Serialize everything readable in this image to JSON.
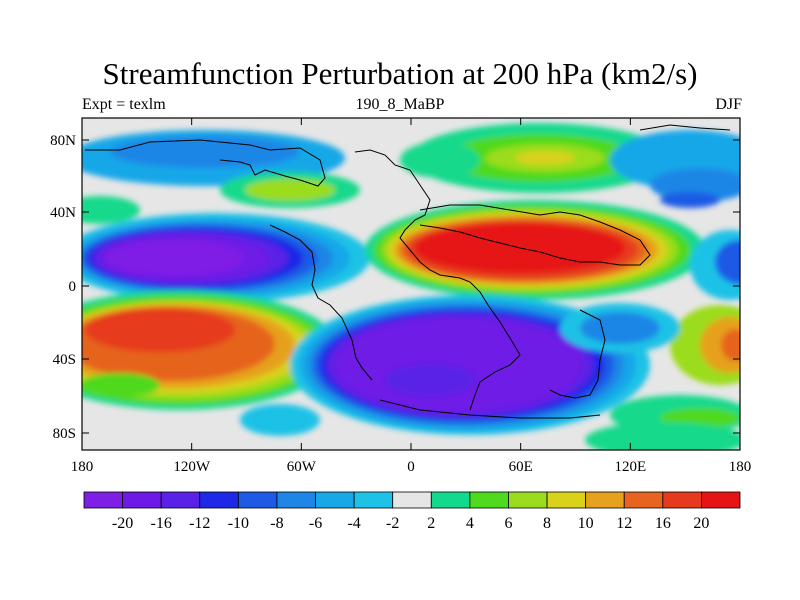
{
  "title": "Streamfunction Perturbation at 200 hPa (km2/s)",
  "left_label": "Expt = texlm",
  "center_label": "190_8_MaBP",
  "right_label": "DJF",
  "lat_ticks": [
    "80N",
    "40N",
    "0",
    "40S",
    "80S"
  ],
  "lon_ticks": [
    "180",
    "120W",
    "60W",
    "0",
    "60E",
    "120E",
    "180"
  ],
  "colorbar": {
    "labels": [
      "-20",
      "-16",
      "-12",
      "-10",
      "-8",
      "-6",
      "-4",
      "-2",
      "2",
      "4",
      "6",
      "8",
      "10",
      "12",
      "16",
      "20"
    ],
    "colors": [
      "#7f1fe6",
      "#6e1ae6",
      "#5a22e6",
      "#1e28e6",
      "#1f5ae6",
      "#1f86e6",
      "#19a7e8",
      "#1ec2e6",
      "#e6e6e6",
      "#12d98c",
      "#4fd91f",
      "#9bdc1f",
      "#d9d11a",
      "#e6a11f",
      "#e6641f",
      "#e63a1f",
      "#e61414"
    ]
  },
  "colors": {
    "background": "#e6e6e6",
    "coast": "#000000"
  }
}
